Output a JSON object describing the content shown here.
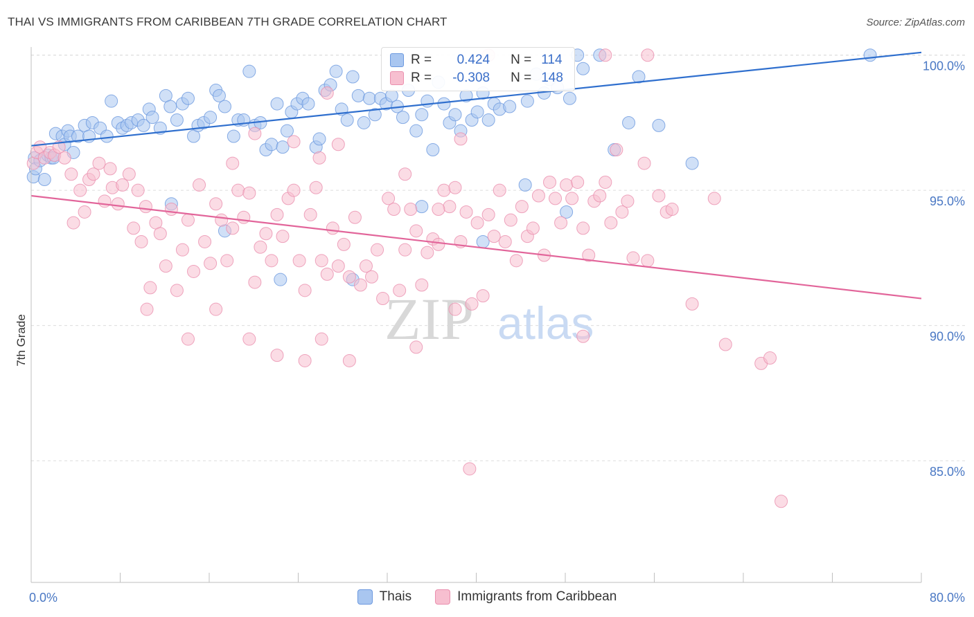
{
  "title": "THAI VS IMMIGRANTS FROM CARIBBEAN 7TH GRADE CORRELATION CHART",
  "source": "Source: ZipAtlas.com",
  "watermark": {
    "zip": "ZIP",
    "atlas": "atlas"
  },
  "stats": [
    {
      "r_label": "R =",
      "r_value": "0.424",
      "n_label": "N =",
      "n_value": "114",
      "color": "#a9c6f0",
      "border": "#6b98df"
    },
    {
      "r_label": "R =",
      "r_value": "-0.308",
      "n_label": "N =",
      "n_value": "148",
      "color": "#f7bfd0",
      "border": "#ea8fae"
    }
  ],
  "legend": [
    {
      "label": "Thais",
      "color": "#a9c6f0",
      "border": "#6b98df"
    },
    {
      "label": "Immigrants from Caribbean",
      "color": "#f7bfd0",
      "border": "#ea8fae"
    }
  ],
  "chart_data": {
    "type": "scatter",
    "title": "THAI VS IMMIGRANTS FROM CARIBBEAN 7TH GRADE CORRELATION CHART",
    "xlabel": "",
    "ylabel": "7th Grade",
    "xlim": [
      0,
      80
    ],
    "ylim": [
      80.5,
      100.3
    ],
    "x_tick_labels": [
      "0.0%",
      "80.0%"
    ],
    "y_ticks": [
      85,
      90,
      95,
      100
    ],
    "y_tick_labels": [
      "85.0%",
      "90.0%",
      "95.0%",
      "100.0%"
    ],
    "grid": true,
    "legend_position": "bottom",
    "series": [
      {
        "name": "Thais",
        "color": "#6b98df",
        "fill": "#a9c6f0",
        "line_color": "#2f6fce",
        "trend": {
          "x": [
            0,
            80
          ],
          "y": [
            96.65,
            100.1
          ]
        },
        "points": [
          [
            0.2,
            95.5
          ],
          [
            0.3,
            96.2
          ],
          [
            0.4,
            95.8
          ],
          [
            0.8,
            96.1
          ],
          [
            1.2,
            95.4
          ],
          [
            1.5,
            96.3
          ],
          [
            1.8,
            96.2
          ],
          [
            2,
            96.2
          ],
          [
            2.2,
            97.1
          ],
          [
            2.8,
            97.0
          ],
          [
            3,
            96.7
          ],
          [
            3.3,
            97.2
          ],
          [
            3.5,
            97.0
          ],
          [
            3.8,
            96.4
          ],
          [
            4.2,
            97.0
          ],
          [
            4.8,
            97.4
          ],
          [
            5.2,
            97.0
          ],
          [
            5.5,
            97.5
          ],
          [
            6.2,
            97.3
          ],
          [
            6.8,
            97.0
          ],
          [
            7.2,
            98.3
          ],
          [
            7.8,
            97.5
          ],
          [
            8.2,
            97.3
          ],
          [
            8.6,
            97.4
          ],
          [
            9,
            97.5
          ],
          [
            9.6,
            97.6
          ],
          [
            10.1,
            97.4
          ],
          [
            10.6,
            98.0
          ],
          [
            10.9,
            97.7
          ],
          [
            11.6,
            97.3
          ],
          [
            12.1,
            98.5
          ],
          [
            12.5,
            98.1
          ],
          [
            13.1,
            97.6
          ],
          [
            13.6,
            98.2
          ],
          [
            14.1,
            98.4
          ],
          [
            14.6,
            97.0
          ],
          [
            15,
            97.4
          ],
          [
            15.5,
            97.5
          ],
          [
            16.1,
            97.7
          ],
          [
            16.6,
            98.7
          ],
          [
            16.9,
            98.5
          ],
          [
            17.4,
            98.1
          ],
          [
            18.2,
            97.0
          ],
          [
            18.6,
            97.6
          ],
          [
            19.1,
            97.6
          ],
          [
            19.6,
            99.4
          ],
          [
            20.1,
            97.4
          ],
          [
            20.6,
            97.5
          ],
          [
            21.1,
            96.5
          ],
          [
            21.6,
            96.7
          ],
          [
            22.1,
            98.2
          ],
          [
            22.6,
            96.6
          ],
          [
            23,
            97.2
          ],
          [
            23.4,
            97.9
          ],
          [
            23.9,
            98.2
          ],
          [
            24.4,
            98.4
          ],
          [
            24.9,
            98.2
          ],
          [
            25.6,
            96.6
          ],
          [
            25.9,
            96.9
          ],
          [
            26.4,
            98.7
          ],
          [
            26.9,
            98.9
          ],
          [
            27.4,
            99.4
          ],
          [
            27.9,
            98.0
          ],
          [
            28.4,
            97.6
          ],
          [
            28.9,
            99.2
          ],
          [
            29.4,
            98.5
          ],
          [
            29.9,
            97.5
          ],
          [
            30.4,
            98.4
          ],
          [
            30.9,
            97.8
          ],
          [
            31.4,
            98.4
          ],
          [
            31.9,
            98.2
          ],
          [
            32.4,
            98.5
          ],
          [
            32.9,
            98.1
          ],
          [
            33.4,
            97.7
          ],
          [
            33.9,
            98.7
          ],
          [
            34.6,
            97.2
          ],
          [
            35.1,
            97.8
          ],
          [
            35.6,
            98.3
          ],
          [
            36.1,
            96.5
          ],
          [
            36.6,
            99.0
          ],
          [
            37.1,
            98.2
          ],
          [
            37.6,
            97.5
          ],
          [
            38.1,
            97.8
          ],
          [
            38.6,
            97.2
          ],
          [
            39.1,
            98.5
          ],
          [
            39.6,
            97.6
          ],
          [
            40.1,
            97.9
          ],
          [
            40.6,
            98.6
          ],
          [
            41.1,
            97.6
          ],
          [
            41.6,
            98.2
          ],
          [
            42.1,
            98.0
          ],
          [
            43,
            98.1
          ],
          [
            44.6,
            98.3
          ],
          [
            45.4,
            99.3
          ],
          [
            46.1,
            98.6
          ],
          [
            46.6,
            99.1
          ],
          [
            47.3,
            98.8
          ],
          [
            48.4,
            98.4
          ],
          [
            49.1,
            100.0
          ],
          [
            49.6,
            99.5
          ],
          [
            51.1,
            100.0
          ],
          [
            52.4,
            96.5
          ],
          [
            53.7,
            97.5
          ],
          [
            54.6,
            99.2
          ],
          [
            56.4,
            97.4
          ],
          [
            59.4,
            96.0
          ],
          [
            75.4,
            100.0
          ],
          [
            12.6,
            94.5
          ],
          [
            17.4,
            93.5
          ],
          [
            22.4,
            91.7
          ],
          [
            28.9,
            91.7
          ],
          [
            35.1,
            94.4
          ],
          [
            40.6,
            93.1
          ],
          [
            44.4,
            95.2
          ],
          [
            48.1,
            94.2
          ]
        ]
      },
      {
        "name": "Immigrants from Caribbean",
        "color": "#ea8fae",
        "fill": "#f7bfd0",
        "line_color": "#e2659a",
        "trend": {
          "x": [
            0,
            80
          ],
          "y": [
            94.8,
            91.0
          ]
        },
        "points": [
          [
            0.2,
            96.0
          ],
          [
            0.5,
            96.4
          ],
          [
            0.8,
            96.6
          ],
          [
            1.2,
            96.2
          ],
          [
            1.7,
            96.4
          ],
          [
            2.1,
            96.3
          ],
          [
            2.5,
            96.6
          ],
          [
            3,
            96.2
          ],
          [
            3.6,
            95.6
          ],
          [
            3.8,
            93.8
          ],
          [
            4.4,
            95.0
          ],
          [
            4.8,
            94.2
          ],
          [
            5.2,
            95.4
          ],
          [
            5.6,
            95.6
          ],
          [
            6.1,
            96.0
          ],
          [
            6.6,
            94.6
          ],
          [
            7.1,
            95.8
          ],
          [
            7.3,
            95.1
          ],
          [
            7.8,
            94.5
          ],
          [
            8.2,
            95.2
          ],
          [
            8.8,
            95.6
          ],
          [
            9.2,
            93.6
          ],
          [
            9.6,
            95.0
          ],
          [
            9.9,
            93.1
          ],
          [
            10.3,
            94.4
          ],
          [
            10.7,
            91.4
          ],
          [
            11.2,
            93.8
          ],
          [
            11.6,
            93.4
          ],
          [
            12.1,
            92.2
          ],
          [
            12.6,
            94.3
          ],
          [
            13.1,
            91.3
          ],
          [
            13.6,
            92.8
          ],
          [
            14.1,
            93.9
          ],
          [
            14.6,
            92.0
          ],
          [
            15.1,
            95.2
          ],
          [
            15.6,
            93.1
          ],
          [
            16.1,
            92.3
          ],
          [
            16.6,
            94.5
          ],
          [
            17.1,
            93.9
          ],
          [
            17.6,
            92.4
          ],
          [
            18.1,
            93.6
          ],
          [
            18.6,
            95.0
          ],
          [
            19.1,
            94.0
          ],
          [
            19.6,
            94.9
          ],
          [
            20.1,
            91.6
          ],
          [
            20.6,
            92.9
          ],
          [
            21.1,
            93.4
          ],
          [
            21.6,
            92.4
          ],
          [
            22.1,
            94.1
          ],
          [
            22.6,
            93.3
          ],
          [
            23.1,
            94.7
          ],
          [
            23.6,
            95.0
          ],
          [
            24.1,
            92.4
          ],
          [
            24.6,
            91.3
          ],
          [
            25.1,
            94.1
          ],
          [
            25.6,
            95.1
          ],
          [
            26.1,
            92.4
          ],
          [
            26.6,
            91.9
          ],
          [
            27.1,
            93.6
          ],
          [
            27.6,
            92.2
          ],
          [
            28.1,
            93.0
          ],
          [
            28.6,
            91.8
          ],
          [
            29.1,
            94.0
          ],
          [
            29.6,
            91.5
          ],
          [
            30.1,
            92.2
          ],
          [
            30.6,
            91.8
          ],
          [
            31.1,
            92.8
          ],
          [
            31.6,
            91.0
          ],
          [
            32.1,
            94.7
          ],
          [
            32.6,
            94.3
          ],
          [
            33.1,
            91.3
          ],
          [
            33.6,
            92.8
          ],
          [
            34.1,
            94.3
          ],
          [
            34.6,
            93.5
          ],
          [
            35.1,
            91.5
          ],
          [
            35.6,
            92.7
          ],
          [
            36.1,
            93.2
          ],
          [
            36.6,
            93.0
          ],
          [
            37.1,
            95.0
          ],
          [
            37.6,
            94.4
          ],
          [
            38.1,
            95.1
          ],
          [
            38.6,
            93.1
          ],
          [
            39.1,
            94.2
          ],
          [
            39.6,
            90.8
          ],
          [
            40.1,
            93.8
          ],
          [
            40.6,
            91.1
          ],
          [
            41.1,
            94.1
          ],
          [
            41.6,
            93.3
          ],
          [
            42.1,
            95.0
          ],
          [
            42.6,
            93.1
          ],
          [
            43.1,
            93.9
          ],
          [
            43.6,
            92.4
          ],
          [
            44.1,
            94.4
          ],
          [
            44.6,
            93.3
          ],
          [
            45.1,
            93.6
          ],
          [
            45.6,
            94.8
          ],
          [
            46.1,
            92.6
          ],
          [
            46.6,
            95.3
          ],
          [
            47.1,
            94.7
          ],
          [
            47.6,
            93.8
          ],
          [
            48.1,
            95.2
          ],
          [
            48.6,
            94.7
          ],
          [
            49.1,
            95.3
          ],
          [
            49.6,
            93.6
          ],
          [
            50.1,
            92.6
          ],
          [
            50.6,
            94.6
          ],
          [
            51.1,
            94.8
          ],
          [
            51.6,
            95.3
          ],
          [
            52.1,
            93.8
          ],
          [
            52.6,
            96.5
          ],
          [
            53.1,
            94.2
          ],
          [
            53.6,
            94.6
          ],
          [
            54.1,
            92.5
          ],
          [
            55.1,
            96.0
          ],
          [
            55.4,
            92.4
          ],
          [
            56.4,
            94.8
          ],
          [
            57.1,
            94.2
          ],
          [
            57.6,
            94.3
          ],
          [
            59.4,
            90.8
          ],
          [
            61.4,
            94.7
          ],
          [
            62.4,
            89.3
          ],
          [
            65.6,
            88.6
          ],
          [
            66.4,
            88.8
          ],
          [
            67.4,
            83.5
          ],
          [
            39.4,
            84.7
          ],
          [
            38.1,
            90.6
          ],
          [
            34.6,
            89.2
          ],
          [
            28.6,
            88.7
          ],
          [
            26.1,
            89.5
          ],
          [
            24.6,
            88.7
          ],
          [
            22.1,
            88.9
          ],
          [
            19.6,
            89.5
          ],
          [
            16.6,
            90.6
          ],
          [
            14.1,
            89.5
          ],
          [
            10.4,
            90.6
          ],
          [
            26.6,
            98.6
          ],
          [
            38.6,
            96.9
          ],
          [
            49.6,
            89.6
          ],
          [
            51.6,
            100.0
          ],
          [
            55.4,
            100.0
          ],
          [
            41.1,
            100.0
          ],
          [
            18.1,
            96.0
          ],
          [
            20.1,
            97.1
          ],
          [
            23.6,
            96.8
          ],
          [
            25.9,
            96.2
          ],
          [
            27.6,
            96.7
          ],
          [
            33.6,
            95.6
          ],
          [
            36.6,
            94.3
          ]
        ]
      }
    ]
  }
}
